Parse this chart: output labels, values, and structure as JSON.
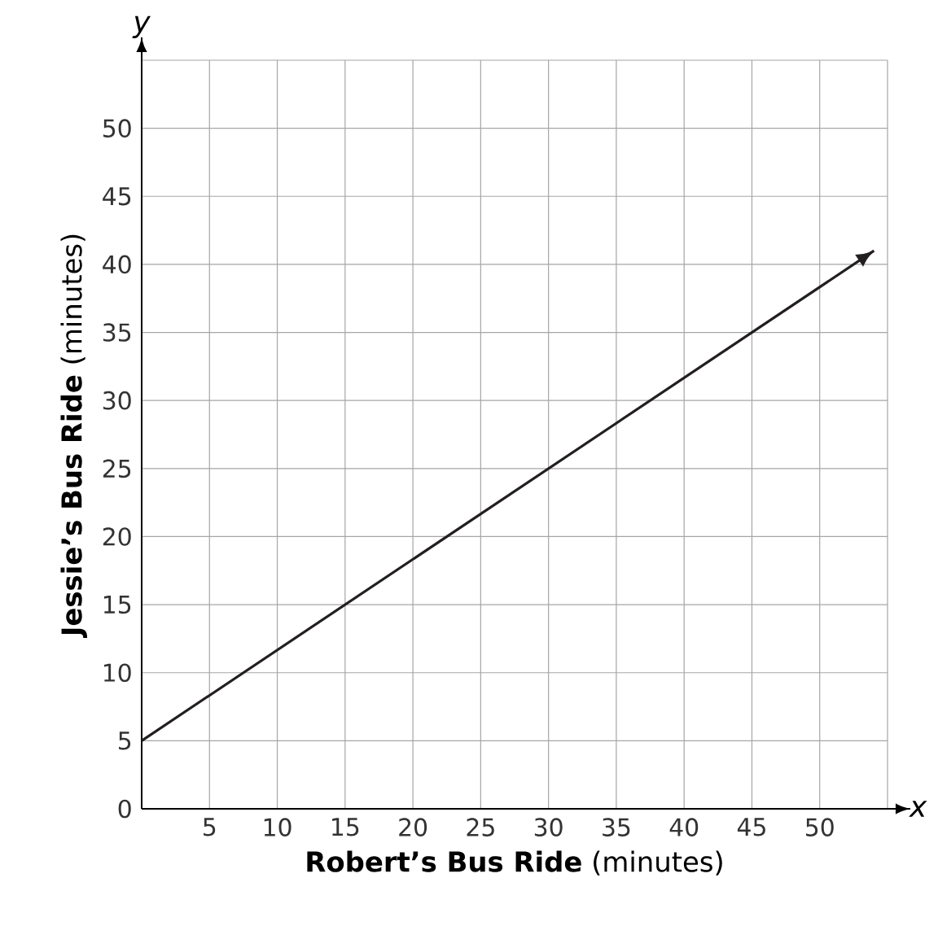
{
  "chart_data": {
    "type": "line",
    "xlabel": "**Robert’s Bus Ride** (minutes)",
    "ylabel": "**Jessie’s Bus Ride** (minutes)",
    "annotations": [
      "x",
      "y"
    ],
    "x": [
      0,
      54
    ],
    "values": [
      5,
      41
    ],
    "color": "#231f20",
    "xlim": [
      0,
      55
    ],
    "ylim": [
      0,
      55
    ],
    "xticks": [
      5,
      10,
      15,
      20,
      25,
      30,
      35,
      40,
      45,
      50,
      {
        "value": 55,
        "label": null
      }
    ],
    "yticks": [
      0,
      5,
      10,
      15,
      20,
      25,
      30,
      35,
      40,
      45,
      50,
      {
        "value": 55,
        "label": null
      }
    ],
    "grid": true,
    "marker": "none",
    "line_style": "solid"
  }
}
